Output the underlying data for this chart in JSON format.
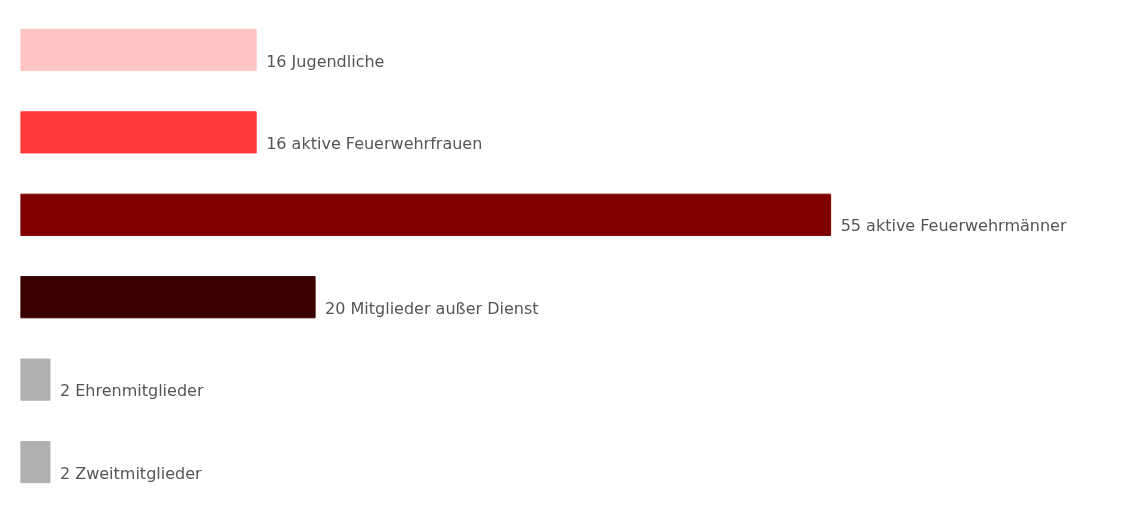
{
  "chart_data": {
    "type": "bar",
    "orientation": "horizontal",
    "categories": [
      null,
      null,
      null,
      null,
      null,
      null
    ],
    "values": [
      16,
      16,
      55,
      20,
      2,
      2
    ],
    "colors": [
      "#ffc4c4",
      "#ff3b3b",
      "#800000",
      "#3a0000",
      "#b0b0b0",
      "#b0b0b0"
    ],
    "value_labels": [
      "16 Jugendliche",
      "16 aktive Feuerwehrfrauen",
      "55 aktive Feuerwehrmänner",
      "20 Mitglieder außer Dienst",
      "2 Ehrenmitglieder",
      "2 Zweitmitglieder"
    ]
  }
}
